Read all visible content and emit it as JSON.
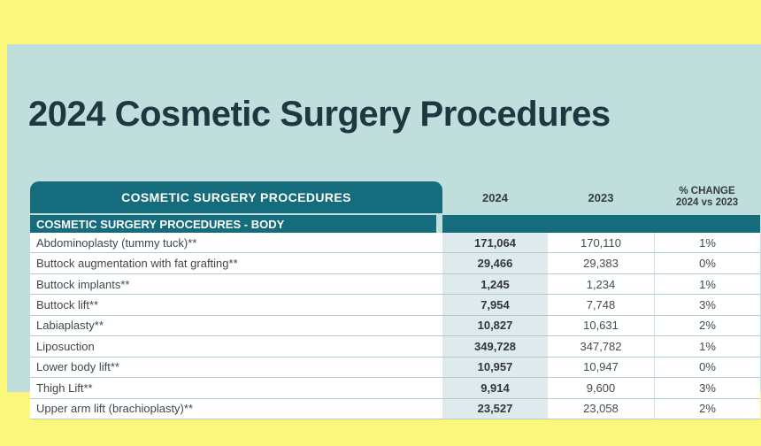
{
  "title": "2024 Cosmetic Surgery Procedures",
  "table": {
    "header": "COSMETIC SURGERY PROCEDURES",
    "columns": {
      "y2024": "2024",
      "y2023": "2023",
      "change_line1": "% CHANGE",
      "change_line2": "2024 vs 2023"
    },
    "section": "COSMETIC SURGERY PROCEDURES - BODY",
    "rows": [
      {
        "procedure": "Abdominoplasty (tummy tuck)**",
        "y2024": "171,064",
        "y2023": "170,110",
        "change": "1%"
      },
      {
        "procedure": "Buttock augmentation with fat grafting**",
        "y2024": "29,466",
        "y2023": "29,383",
        "change": "0%"
      },
      {
        "procedure": "Buttock implants**",
        "y2024": "1,245",
        "y2023": "1,234",
        "change": "1%"
      },
      {
        "procedure": "Buttock lift**",
        "y2024": "7,954",
        "y2023": "7,748",
        "change": "3%"
      },
      {
        "procedure": "Labiaplasty**",
        "y2024": "10,827",
        "y2023": "10,631",
        "change": "2%"
      },
      {
        "procedure": "Liposuction",
        "y2024": "349,728",
        "y2023": "347,782",
        "change": "1%"
      },
      {
        "procedure": "Lower body lift**",
        "y2024": "10,957",
        "y2023": "10,947",
        "change": "0%"
      },
      {
        "procedure": "Thigh Lift**",
        "y2024": "9,914",
        "y2023": "9,600",
        "change": "3%"
      },
      {
        "procedure": "Upper arm lift (brachioplasty)**",
        "y2024": "23,527",
        "y2023": "23,058",
        "change": "2%"
      }
    ]
  },
  "colors": {
    "page_background": "#FBF77D",
    "panel_background": "#BFDEDC",
    "teal_header": "#156C7D",
    "title_text": "#21373F",
    "highlight_column_2024": "#DFEAEC",
    "row_border": "#AFCCD4",
    "header_text": "#FFFFFF"
  },
  "chart_data": {
    "type": "table",
    "title": "2024 Cosmetic Surgery Procedures",
    "section": "COSMETIC SURGERY PROCEDURES - BODY",
    "columns": [
      "COSMETIC SURGERY PROCEDURES",
      "2024",
      "2023",
      "% CHANGE 2024 vs 2023"
    ],
    "rows": [
      [
        "Abdominoplasty (tummy tuck)**",
        171064,
        170110,
        "1%"
      ],
      [
        "Buttock augmentation with fat grafting**",
        29466,
        29383,
        "0%"
      ],
      [
        "Buttock implants**",
        1245,
        1234,
        "1%"
      ],
      [
        "Buttock lift**",
        7954,
        7748,
        "3%"
      ],
      [
        "Labiaplasty**",
        10827,
        10631,
        "2%"
      ],
      [
        "Liposuction",
        349728,
        347782,
        "1%"
      ],
      [
        "Lower body lift**",
        10957,
        10947,
        "0%"
      ],
      [
        "Thigh Lift**",
        9914,
        9600,
        "3%"
      ],
      [
        "Upper arm lift (brachioplasty)**",
        23527,
        23058,
        "2%"
      ]
    ]
  }
}
